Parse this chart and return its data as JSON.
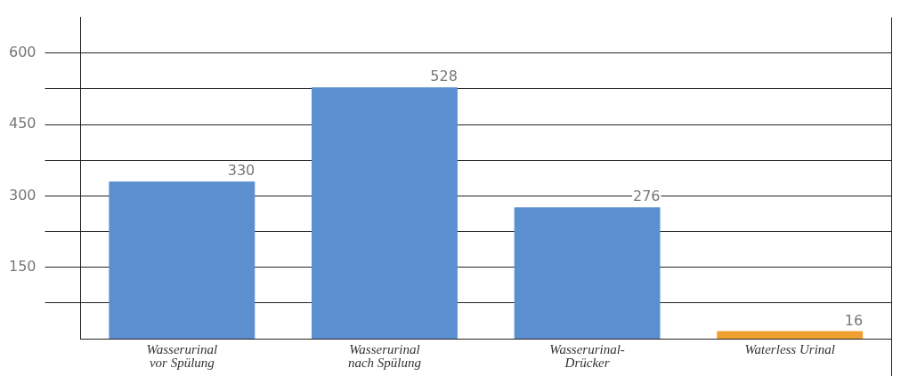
{
  "chart_data": {
    "type": "bar",
    "categories": [
      "Wasserurinal\nvor Spülung",
      "Wasserurinal\nnach Spülung",
      "Wasserurinal-\nDrücker",
      "Waterless Urinal"
    ],
    "values": [
      330,
      528,
      276,
      16
    ],
    "colors": [
      "#5b8fd0",
      "#5b8fd0",
      "#5b8fd0",
      "#f0a030"
    ],
    "ylim": [
      0,
      675
    ],
    "yticks": [
      {
        "value": 75,
        "label": null
      },
      150,
      {
        "value": 225,
        "label": null
      },
      300,
      {
        "value": 375,
        "label": null
      },
      450,
      {
        "value": 525,
        "label": null
      },
      600
    ],
    "grid": "y",
    "data_labels": true
  }
}
